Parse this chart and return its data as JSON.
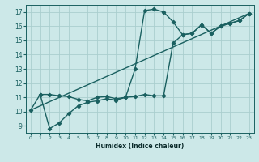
{
  "bg_color": "#cce8e8",
  "grid_color": "#aacece",
  "line_color": "#1a6060",
  "marker": "D",
  "markersize": 2.2,
  "linewidth": 1.0,
  "xlabel": "Humidex (Indice chaleur)",
  "xlim": [
    -0.5,
    23.5
  ],
  "ylim": [
    8.5,
    17.5
  ],
  "xticks": [
    0,
    1,
    2,
    3,
    4,
    5,
    6,
    7,
    8,
    9,
    10,
    11,
    12,
    13,
    14,
    15,
    16,
    17,
    18,
    19,
    20,
    21,
    22,
    23
  ],
  "yticks": [
    9,
    10,
    11,
    12,
    13,
    14,
    15,
    16,
    17
  ],
  "curve1_x": [
    0,
    1,
    2,
    3,
    4,
    5,
    6,
    7,
    8,
    9,
    10,
    11,
    12,
    13,
    14,
    15,
    16,
    17,
    18,
    19,
    20,
    21,
    22,
    23
  ],
  "curve1_y": [
    10.1,
    11.2,
    11.2,
    11.1,
    11.05,
    10.85,
    10.75,
    11.0,
    11.05,
    10.9,
    11.0,
    13.0,
    17.1,
    17.2,
    17.0,
    16.3,
    15.4,
    15.5,
    16.1,
    15.5,
    16.0,
    16.2,
    16.4,
    16.9
  ],
  "curve2_x": [
    1,
    2,
    3,
    4,
    5,
    6,
    7,
    8,
    9,
    10,
    11,
    12,
    13,
    14,
    15,
    16,
    17,
    18,
    19,
    20,
    21,
    22,
    23
  ],
  "curve2_y": [
    11.2,
    8.8,
    9.2,
    9.85,
    10.4,
    10.65,
    10.75,
    10.9,
    10.8,
    11.0,
    11.05,
    11.2,
    11.1,
    11.1,
    14.8,
    15.4,
    15.5,
    16.1,
    15.5,
    16.0,
    16.2,
    16.4,
    16.9
  ],
  "line3_x": [
    0,
    23
  ],
  "line3_y": [
    10.1,
    16.9
  ]
}
